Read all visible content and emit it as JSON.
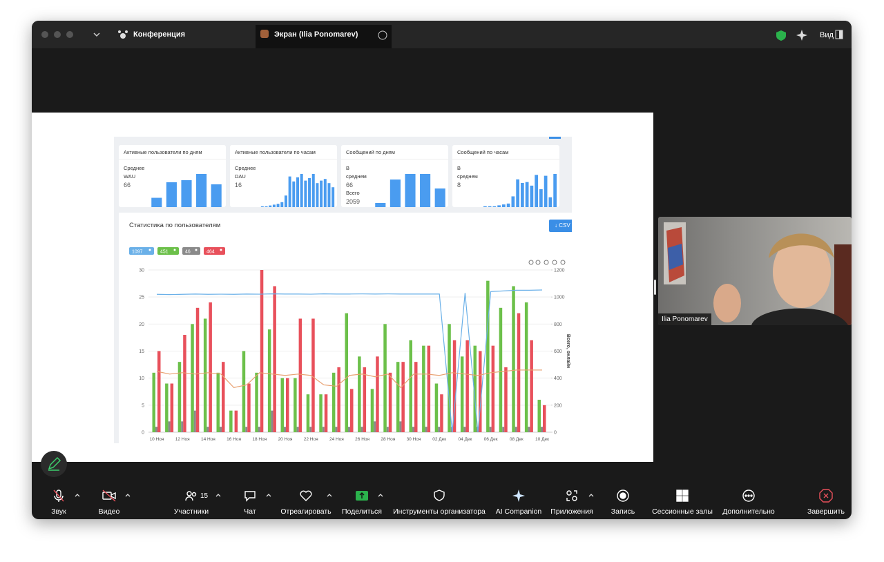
{
  "window": {
    "tab_main": "Конференция",
    "tab_screen": "Экран (Ilia Ponomarev)",
    "view": "Вид"
  },
  "shared_screen": {
    "cards": [
      {
        "title": "Активные пользователи по дням",
        "stats": [
          "Среднее",
          "WAU",
          "66"
        ],
        "values": [
          9,
          24,
          26,
          32,
          22
        ]
      },
      {
        "title": "Активные пользователи по часам",
        "stats": [
          "Среднее",
          "DAU",
          "16"
        ],
        "values": [
          1,
          1,
          2,
          3,
          4,
          6,
          14,
          37,
          31,
          36,
          40,
          32,
          35,
          40,
          29,
          32,
          34,
          29,
          24
        ]
      },
      {
        "title": "Сообщений по дням",
        "stats": [
          "В",
          "среднем",
          "66",
          "Всего",
          "2059"
        ],
        "values": [
          6,
          40,
          48,
          48,
          27
        ]
      },
      {
        "title": "Сообщений по часам",
        "stats": [
          "В",
          "среднем",
          "8"
        ],
        "values": [
          1,
          1,
          1,
          2,
          3,
          4,
          12,
          31,
          27,
          28,
          24,
          36,
          20,
          35,
          11,
          37
        ]
      }
    ],
    "section_title": "Статистика по пользователям",
    "csv_button": "CSV",
    "chart_data": {
      "type": "bar",
      "y2_label": "Всего, онлайн",
      "categories": [
        "10 Ноя",
        null,
        "12 Ноя",
        null,
        "14 Ноя",
        null,
        "16 Ноя",
        null,
        "18 Ноя",
        null,
        "20 Ноя",
        null,
        "22 Ноя",
        null,
        "24 Ноя",
        null,
        "26 Ноя",
        null,
        "28 Ноя",
        null,
        "30 Ноя",
        null,
        "02 Дек",
        null,
        "04 Дек",
        null,
        "06 Дек",
        null,
        "08 Дек",
        null,
        "10 Дек"
      ],
      "ylim": [
        0,
        30
      ],
      "yticks": [
        0,
        5,
        10,
        15,
        20,
        25,
        30
      ],
      "y2lim": [
        0,
        1200
      ],
      "y2ticks": [
        0,
        200,
        400,
        600,
        800,
        1000,
        1200
      ],
      "grid": true,
      "series": [
        {
          "name": "1097",
          "type": "line",
          "axis": "y2",
          "color": "#6ab0e8",
          "values": [
            1020,
            1018,
            1020,
            1022,
            1020,
            1021,
            1020,
            1022,
            1021,
            1023,
            1022,
            1022,
            1021,
            1023,
            1022,
            1022,
            1023,
            1022,
            1023,
            1022,
            1022,
            1022,
            1022,
            0,
            1030,
            0,
            1040,
            1045,
            1050,
            1050,
            1052
          ]
        },
        {
          "name": "451",
          "type": "bar",
          "color": "#6cc04a",
          "values": [
            11,
            9,
            13,
            20,
            21,
            11,
            4,
            15,
            11,
            19,
            10,
            10,
            7,
            7,
            11,
            22,
            14,
            8,
            20,
            13,
            17,
            16,
            9,
            20,
            14,
            16,
            28,
            23,
            27,
            24,
            6
          ]
        },
        {
          "name": "46",
          "type": "bar",
          "color": "#8a8a8a",
          "values": [
            1,
            2,
            2,
            4,
            1,
            1,
            0,
            1,
            1,
            4,
            1,
            1,
            1,
            1,
            1,
            1,
            1,
            2,
            1,
            2,
            1,
            1,
            1,
            1,
            1,
            1,
            1,
            1,
            1,
            1,
            1
          ]
        },
        {
          "name": "464",
          "type": "bar",
          "color": "#e8505b",
          "values": [
            15,
            9,
            18,
            23,
            24,
            13,
            4,
            9,
            30,
            27,
            10,
            21,
            21,
            7,
            12,
            8,
            12,
            14,
            11,
            13,
            13,
            16,
            7,
            17,
            17,
            15,
            16,
            12,
            22,
            17,
            5
          ]
        },
        {
          "type": "line",
          "axis": "y2",
          "color": "#e8a070",
          "values": [
            450,
            430,
            440,
            430,
            440,
            430,
            330,
            350,
            440,
            430,
            420,
            430,
            420,
            350,
            340,
            420,
            430,
            410,
            430,
            330,
            430,
            430,
            420,
            440,
            430,
            420,
            440,
            450,
            460,
            460,
            460
          ]
        }
      ]
    }
  },
  "participant": {
    "name": "Ilia Ponomarev"
  },
  "toolbar": {
    "participants_count": "15",
    "items": [
      "Звук",
      "Видео",
      "Участники",
      "Чат",
      "Отреагировать",
      "Поделиться",
      "Инструменты организатора",
      "AI Companion",
      "Приложения",
      "Запись",
      "Сессионные залы",
      "Дополнительно",
      "Завершить"
    ]
  }
}
